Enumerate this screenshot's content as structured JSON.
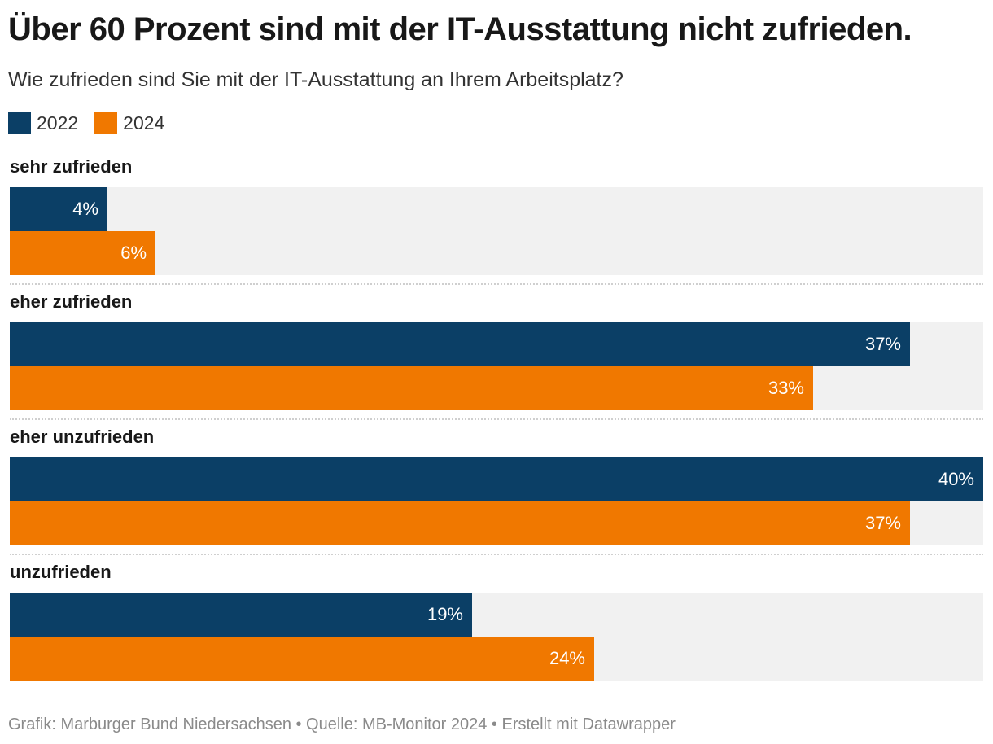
{
  "header": {
    "title": "Über 60 Prozent sind mit der IT-Ausstattung nicht zufrieden.",
    "subtitle": "Wie zufrieden sind Sie mit der IT-Ausstattung an Ihrem Arbeitsplatz?"
  },
  "legend": [
    {
      "label": "2022",
      "color": "#0b3f66"
    },
    {
      "label": "2024",
      "color": "#f07800"
    }
  ],
  "footer": {
    "text": "Grafik: Marburger Bund Niedersachsen • Quelle: MB-Monitor 2024 • Erstellt mit Datawrapper"
  },
  "chart_data": {
    "type": "bar",
    "orientation": "horizontal",
    "title": "Über 60 Prozent sind mit der IT-Ausstattung nicht zufrieden.",
    "subtitle": "Wie zufrieden sind Sie mit der IT-Ausstattung an Ihrem Arbeitsplatz?",
    "categories": [
      "sehr zufrieden",
      "eher zufrieden",
      "eher unzufrieden",
      "unzufrieden"
    ],
    "series": [
      {
        "name": "2022",
        "color": "#0b3f66",
        "values": [
          4,
          37,
          40,
          19
        ],
        "labels": [
          "4%",
          "37%",
          "40%",
          "19%"
        ]
      },
      {
        "name": "2024",
        "color": "#f07800",
        "values": [
          6,
          33,
          37,
          24
        ],
        "labels": [
          "6%",
          "33%",
          "37%",
          "24%"
        ]
      }
    ],
    "xlim": [
      0,
      40
    ],
    "unit": "%",
    "legend": "top-left",
    "grid": false
  }
}
